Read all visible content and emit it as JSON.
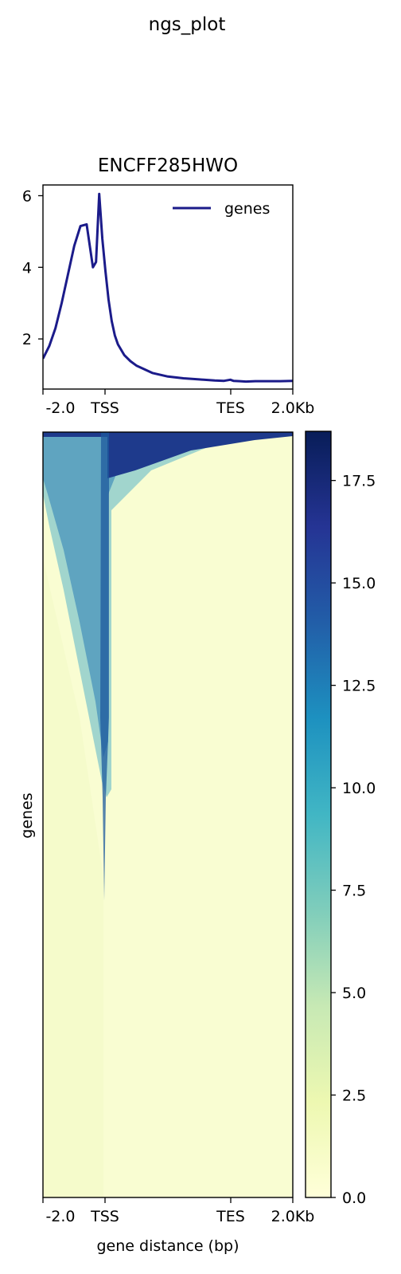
{
  "figure": {
    "suptitle": "ngs_plot"
  },
  "chart_data": [
    {
      "type": "line",
      "title": "ENCFF285HWO",
      "xlabel": "",
      "ylabel": "",
      "x_ticks": [
        "-2.0",
        "TSS",
        "TES",
        "2.0Kb"
      ],
      "yticks": [
        2,
        4,
        6
      ],
      "ylim": [
        0.6,
        6.3
      ],
      "xlim": [
        -2000,
        6000
      ],
      "legend": {
        "placement": "top-right",
        "entries": [
          "genes"
        ]
      },
      "line_color": "#1b1b8a",
      "series": [
        {
          "name": "genes",
          "x": [
            -2000,
            -1800,
            -1600,
            -1400,
            -1200,
            -1000,
            -800,
            -600,
            -400,
            -300,
            -200,
            -100,
            0,
            100,
            200,
            300,
            400,
            600,
            800,
            1000,
            1500,
            2000,
            2500,
            3000,
            3500,
            3800,
            4000,
            4100,
            4300,
            4500,
            4800,
            5200,
            5600,
            6000
          ],
          "y": [
            1.45,
            1.8,
            2.3,
            3.0,
            3.8,
            4.6,
            5.15,
            5.2,
            4.0,
            4.15,
            6.05,
            4.8,
            3.9,
            3.1,
            2.5,
            2.1,
            1.85,
            1.55,
            1.38,
            1.25,
            1.05,
            0.95,
            0.9,
            0.87,
            0.84,
            0.83,
            0.86,
            0.83,
            0.82,
            0.81,
            0.82,
            0.82,
            0.82,
            0.83
          ]
        }
      ]
    },
    {
      "type": "heatmap",
      "title": "",
      "xlabel": "gene distance (bp)",
      "ylabel": "genes",
      "x_ticks": [
        "-2.0",
        "TSS",
        "TES",
        "2.0Kb"
      ],
      "colorbar": {
        "min": 0,
        "max": 18.7,
        "ticks": [
          "0.0",
          "2.5",
          "5.0",
          "7.5",
          "10.0",
          "12.5",
          "15.0",
          "17.5"
        ],
        "colormap": "YlGnBu",
        "colors": [
          "#ffffd9",
          "#edf8b1",
          "#c7e9b4",
          "#7fcdbb",
          "#41b6c4",
          "#1d91c0",
          "#225ea8",
          "#253494",
          "#081d58"
        ]
      }
    }
  ]
}
